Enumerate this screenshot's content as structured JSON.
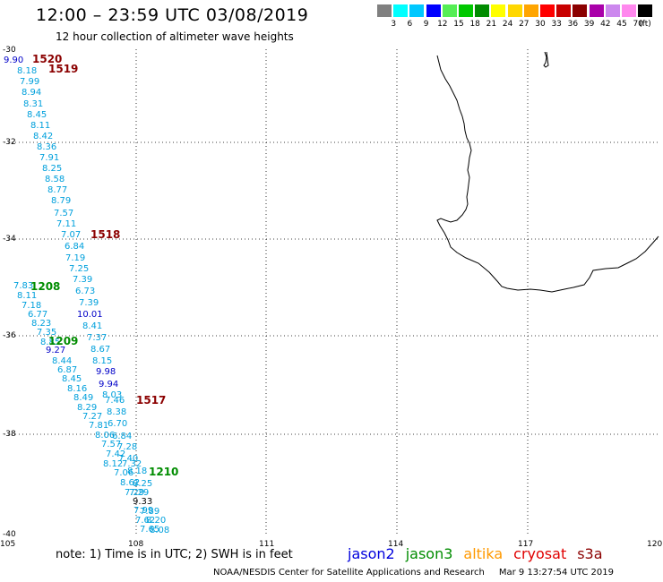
{
  "header": {
    "title": "12:00 – 23:59 UTC 03/08/2019",
    "subtitle": "12 hour collection of altimeter wave heights"
  },
  "legend": {
    "colors": [
      "#808080",
      "#00ffff",
      "#00c8ff",
      "#0000ff",
      "#55ee55",
      "#00c800",
      "#008c00",
      "#ffff00",
      "#ffd700",
      "#ffa500",
      "#ff0000",
      "#c80000",
      "#8b0000",
      "#aa00aa",
      "#cc88ee",
      "#ff88ee",
      "#000000"
    ],
    "labels": [
      "3",
      "6",
      "9",
      "12",
      "15",
      "18",
      "21",
      "24",
      "27",
      "30",
      "33",
      "36",
      "39",
      "42",
      "45",
      "70"
    ],
    "unit": "(ft)"
  },
  "axes": {
    "x_ticks": [
      "105",
      "108",
      "111",
      "114",
      "117",
      "120"
    ],
    "y_ticks": [
      "-30",
      "-32",
      "-34",
      "-36",
      "-38",
      "-40"
    ]
  },
  "time_labels": [
    {
      "text": "1520",
      "color": "#8b0000"
    },
    {
      "text": "1519",
      "color": "#8b0000"
    },
    {
      "text": "1518",
      "color": "#8b0000"
    },
    {
      "text": "1208",
      "color": "#008c00"
    },
    {
      "text": "1209",
      "color": "#008c00"
    },
    {
      "text": "1517",
      "color": "#8b0000"
    },
    {
      "text": "1210",
      "color": "#008c00"
    }
  ],
  "wave_heights": [
    {
      "text": "9.90",
      "color": "#0000c8"
    },
    {
      "text": "8.18",
      "color": "#00a0dc"
    },
    {
      "text": "7.99",
      "color": "#00a0dc"
    },
    {
      "text": "8.94",
      "color": "#00a0dc"
    },
    {
      "text": "8.31",
      "color": "#00a0dc"
    },
    {
      "text": "8.45",
      "color": "#00a0dc"
    },
    {
      "text": "8.11",
      "color": "#00a0dc"
    },
    {
      "text": "8.42",
      "color": "#00a0dc"
    },
    {
      "text": "8.36",
      "color": "#00a0dc"
    },
    {
      "text": "7.91",
      "color": "#00a0dc"
    },
    {
      "text": "8.25",
      "color": "#00a0dc"
    },
    {
      "text": "8.58",
      "color": "#00a0dc"
    },
    {
      "text": "8.77",
      "color": "#00a0dc"
    },
    {
      "text": "8.79",
      "color": "#00a0dc"
    },
    {
      "text": "7.57",
      "color": "#00a0dc"
    },
    {
      "text": "7.11",
      "color": "#00a0dc"
    },
    {
      "text": "7.07",
      "color": "#00a0dc"
    },
    {
      "text": "6.84",
      "color": "#00a0dc"
    },
    {
      "text": "7.19",
      "color": "#00a0dc"
    },
    {
      "text": "7.25",
      "color": "#00a0dc"
    },
    {
      "text": "7.39",
      "color": "#00a0dc"
    },
    {
      "text": "7.83",
      "color": "#00a0dc"
    },
    {
      "text": "6.73",
      "color": "#00a0dc"
    },
    {
      "text": "8.11",
      "color": "#00a0dc"
    },
    {
      "text": "7.39",
      "color": "#00a0dc"
    },
    {
      "text": "7.18",
      "color": "#00a0dc"
    },
    {
      "text": "10.01",
      "color": "#0000c8"
    },
    {
      "text": "6.77",
      "color": "#00a0dc"
    },
    {
      "text": "8.23",
      "color": "#00a0dc"
    },
    {
      "text": "8.41",
      "color": "#00a0dc"
    },
    {
      "text": "7.35",
      "color": "#00a0dc"
    },
    {
      "text": "7.37",
      "color": "#00a0dc"
    },
    {
      "text": "8.85",
      "color": "#00a0dc"
    },
    {
      "text": "9.27",
      "color": "#0000c8"
    },
    {
      "text": "8.67",
      "color": "#00a0dc"
    },
    {
      "text": "8.44",
      "color": "#00a0dc"
    },
    {
      "text": "8.15",
      "color": "#00a0dc"
    },
    {
      "text": "6.87",
      "color": "#00a0dc"
    },
    {
      "text": "9.98",
      "color": "#0000c8"
    },
    {
      "text": "8.45",
      "color": "#00a0dc"
    },
    {
      "text": "9.94",
      "color": "#0000c8"
    },
    {
      "text": "8.16",
      "color": "#00a0dc"
    },
    {
      "text": "8.49",
      "color": "#00a0dc"
    },
    {
      "text": "8.03",
      "color": "#00a0dc"
    },
    {
      "text": "7.46",
      "color": "#00a0dc"
    },
    {
      "text": "8.29",
      "color": "#00a0dc"
    },
    {
      "text": "8.38",
      "color": "#00a0dc"
    },
    {
      "text": "7.27",
      "color": "#00a0dc"
    },
    {
      "text": "7.81",
      "color": "#00a0dc"
    },
    {
      "text": "6.70",
      "color": "#00a0dc"
    },
    {
      "text": "8.06",
      "color": "#00a0dc"
    },
    {
      "text": "6.84",
      "color": "#00a0dc"
    },
    {
      "text": "7.57",
      "color": "#00a0dc"
    },
    {
      "text": "7.28",
      "color": "#00a0dc"
    },
    {
      "text": "7.42",
      "color": "#00a0dc"
    },
    {
      "text": "7.40",
      "color": "#00a0dc"
    },
    {
      "text": "8.12",
      "color": "#00a0dc"
    },
    {
      "text": "7.32",
      "color": "#00a0dc"
    },
    {
      "text": "7.06",
      "color": "#00a0dc"
    },
    {
      "text": "8.18",
      "color": "#00a0dc"
    },
    {
      "text": "8.62",
      "color": "#00a0dc"
    },
    {
      "text": "8.25",
      "color": "#00a0dc"
    },
    {
      "text": "7.29",
      "color": "#00a0dc"
    },
    {
      "text": "7.29",
      "color": "#00a0dc"
    },
    {
      "text": "9.33",
      "color": "#000000"
    },
    {
      "text": "7.99",
      "color": "#00a0dc"
    },
    {
      "text": "7.89",
      "color": "#00a0dc"
    },
    {
      "text": "7.62",
      "color": "#00a0dc"
    },
    {
      "text": "8.20",
      "color": "#00a0dc"
    },
    {
      "text": "7.65",
      "color": "#00a0dc"
    },
    {
      "text": "8.08",
      "color": "#00a0dc"
    }
  ],
  "footer": {
    "note": "note:  1) Time is in UTC;  2) SWH is in feet",
    "satellites": [
      {
        "text": "jason2",
        "color": "#0000dd"
      },
      {
        "text": "jason3",
        "color": "#008c00"
      },
      {
        "text": "altika",
        "color": "#ff9900"
      },
      {
        "text": "cryosat",
        "color": "#e00000"
      },
      {
        "text": "s3a",
        "color": "#8b0000"
      }
    ],
    "credit": "NOAA/NESDIS Center for Satellite Applications and Research",
    "timestamp": "Mar  9 13:27:54 UTC 2019"
  }
}
